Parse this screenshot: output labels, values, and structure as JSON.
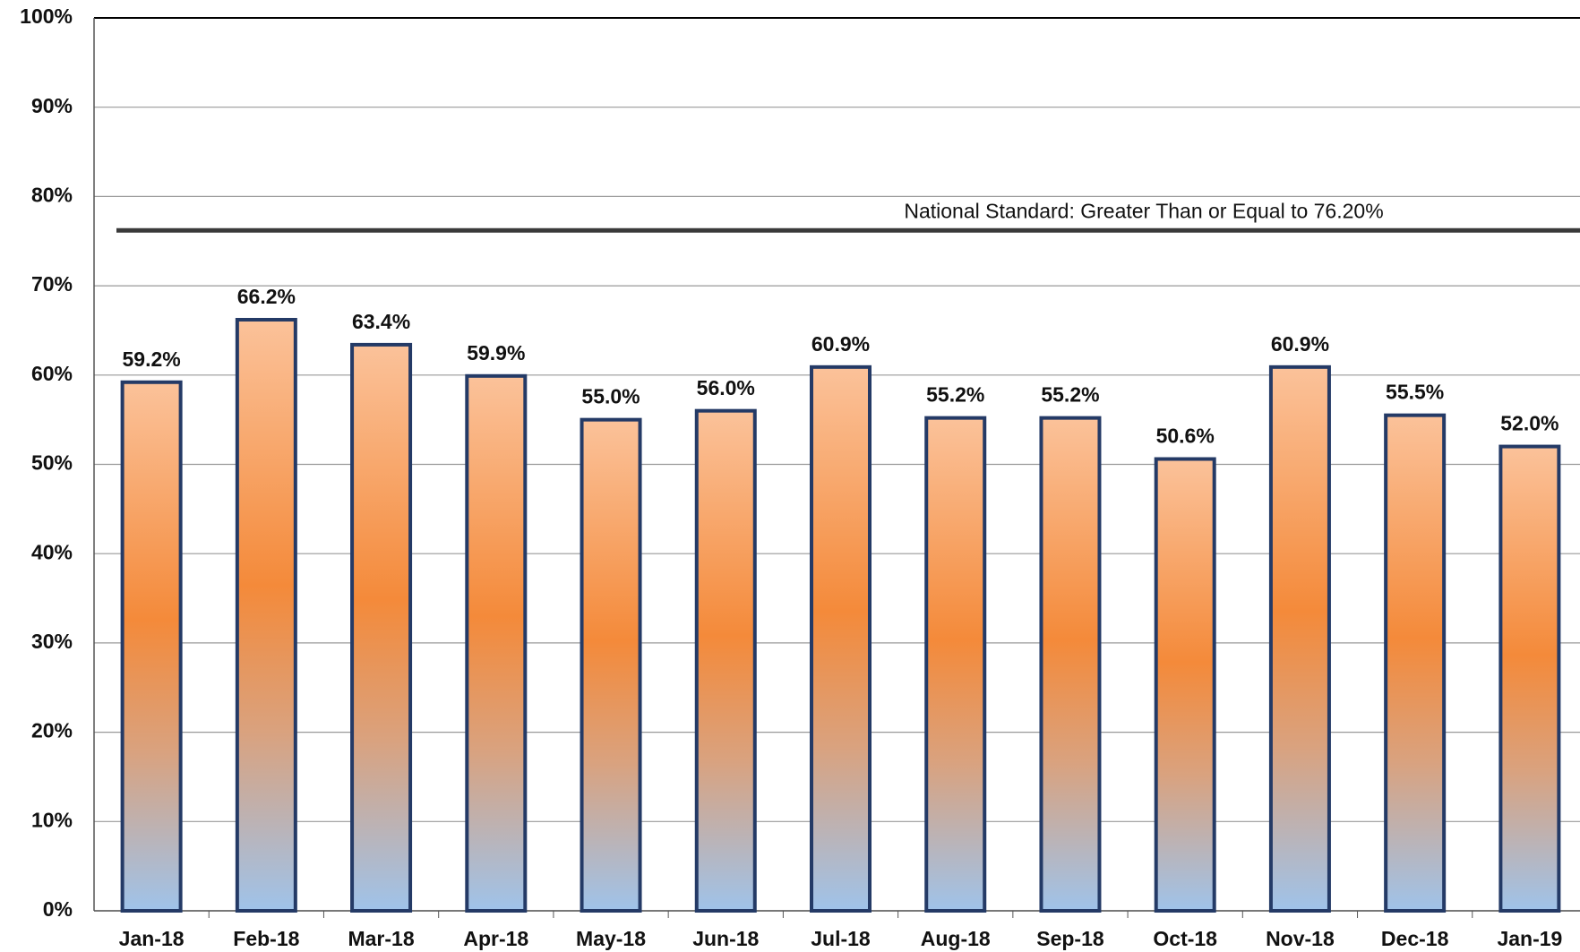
{
  "chart_data": {
    "type": "bar",
    "categories": [
      "Jan-18",
      "Feb-18",
      "Mar-18",
      "Apr-18",
      "May-18",
      "Jun-18",
      "Jul-18",
      "Aug-18",
      "Sep-18",
      "Oct-18",
      "Nov-18",
      "Dec-18",
      "Jan-19"
    ],
    "values": [
      59.2,
      66.2,
      63.4,
      59.9,
      55.0,
      56.0,
      60.9,
      55.2,
      55.2,
      50.6,
      60.9,
      55.5,
      52.0
    ],
    "value_labels": [
      "59.2%",
      "66.2%",
      "63.4%",
      "59.9%",
      "55.0%",
      "56.0%",
      "60.9%",
      "55.2%",
      "55.2%",
      "50.6%",
      "60.9%",
      "55.5%",
      "52.0%"
    ],
    "ylim": [
      0,
      100
    ],
    "yticks": [
      {
        "value": 0,
        "label": "0%"
      },
      {
        "value": 10,
        "label": "10%"
      },
      {
        "value": 20,
        "label": "20%"
      },
      {
        "value": 30,
        "label": "30%"
      },
      {
        "value": 40,
        "label": "40%"
      },
      {
        "value": 50,
        "label": "50%"
      },
      {
        "value": 60,
        "label": "60%"
      },
      {
        "value": 70,
        "label": "70%"
      },
      {
        "value": 80,
        "label": "80%"
      },
      {
        "value": 90,
        "label": "90%"
      },
      {
        "value": 100,
        "label": "100%"
      }
    ],
    "grid": true,
    "reference_line": {
      "value": 76.2,
      "label": "National Standard: Greater Than or Equal to 76.20%",
      "color": "#3a3a3a"
    }
  }
}
